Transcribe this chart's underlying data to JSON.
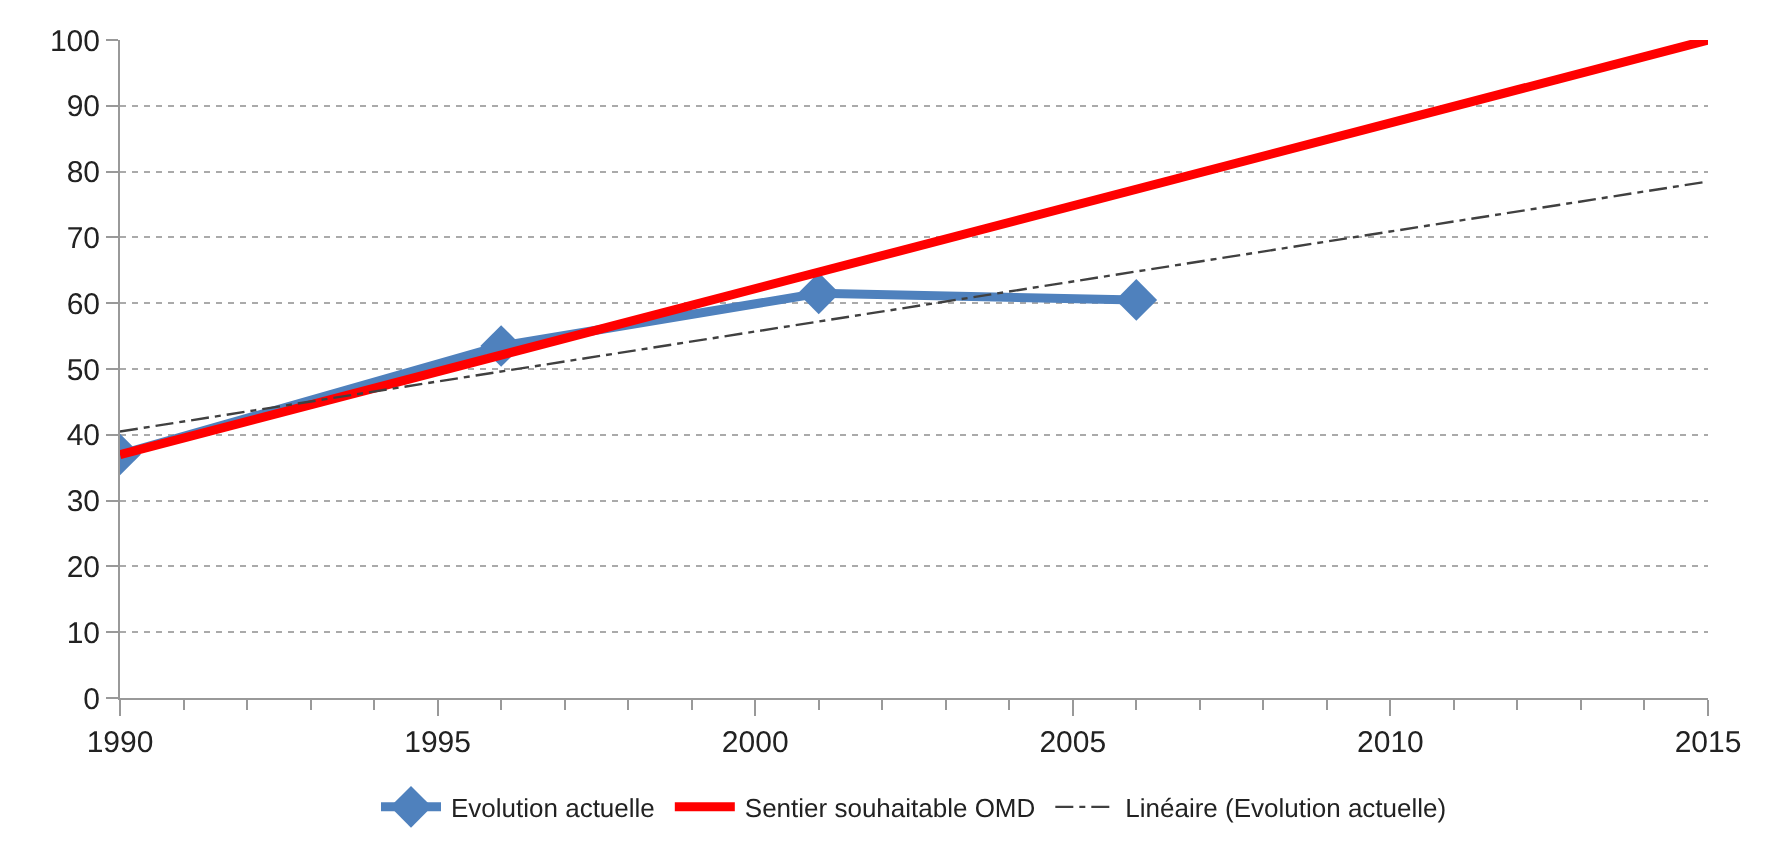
{
  "chart_data": {
    "type": "line",
    "xlim": [
      1990,
      2015
    ],
    "xticks": [
      1990,
      1995,
      2000,
      2005,
      2010,
      2015
    ],
    "ylim": [
      0,
      100
    ],
    "yticks": [
      0,
      10,
      20,
      30,
      40,
      50,
      60,
      70,
      80,
      90,
      100
    ],
    "grid": "y",
    "legend": "bottom",
    "series": [
      {
        "name": "Evolution actuelle",
        "color": "#4f81bd",
        "x": [
          1990,
          1996,
          2001,
          2006
        ],
        "values": [
          37,
          53.5,
          61.5,
          60.5
        ],
        "marker": "diamond",
        "line_style": "solid"
      },
      {
        "name": "Sentier souhaitable OMD",
        "color": "#ff0000",
        "x": [
          1990,
          2015
        ],
        "values": [
          37,
          100
        ],
        "marker": "none",
        "line_style": "solid"
      },
      {
        "name": "Linéaire (Evolution actuelle)",
        "color": "#404040",
        "x": [
          1990,
          2015
        ],
        "values": [
          40.5,
          78.5
        ],
        "marker": "none",
        "line_style": "dashed"
      }
    ]
  }
}
